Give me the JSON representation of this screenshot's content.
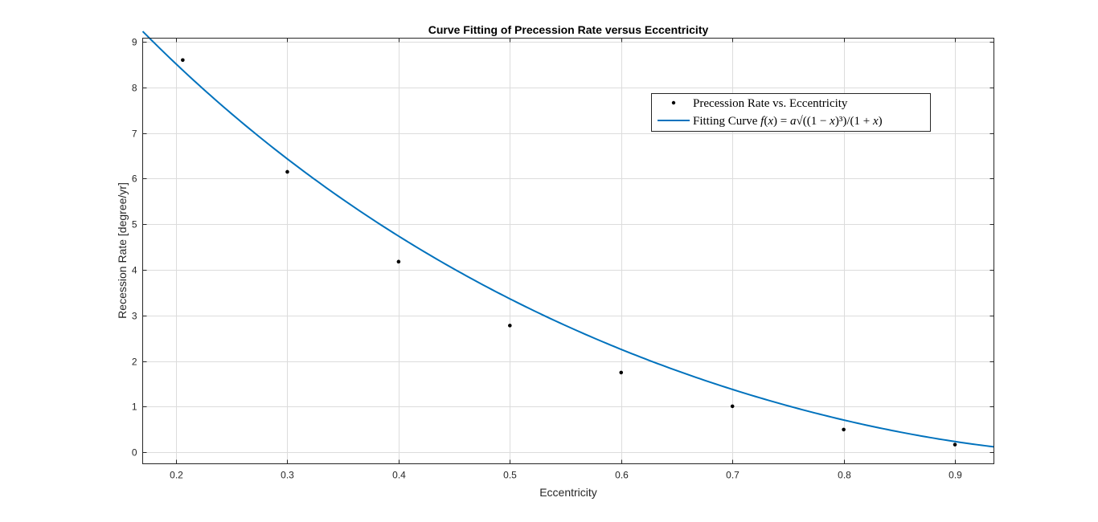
{
  "chart_data": {
    "type": "scatter",
    "title": "Curve Fitting of Precession Rate versus Eccentricity",
    "xlabel": "Eccentricity",
    "ylabel": "Recession Rate [degree/yr]",
    "xlim": [
      0.17,
      0.935
    ],
    "ylim": [
      -0.25,
      9.08
    ],
    "xticks": [
      0.2,
      0.3,
      0.4,
      0.5,
      0.6,
      0.7,
      0.8,
      0.9
    ],
    "xtick_labels": [
      "0.2",
      "0.3",
      "0.4",
      "0.5",
      "0.6",
      "0.7",
      "0.8",
      "0.9"
    ],
    "yticks": [
      0,
      1,
      2,
      3,
      4,
      5,
      6,
      7,
      8,
      9
    ],
    "ytick_labels": [
      "0",
      "1",
      "2",
      "3",
      "4",
      "5",
      "6",
      "7",
      "8",
      "9"
    ],
    "grid": true,
    "legend_position": "top-right",
    "series": [
      {
        "name": "Precession Rate vs. Eccentricity",
        "kind": "scatter",
        "color": "#000000",
        "x": [
          0.206,
          0.3,
          0.4,
          0.5,
          0.6,
          0.7,
          0.8,
          0.9
        ],
        "y": [
          8.6,
          6.15,
          4.18,
          2.78,
          1.75,
          1.01,
          0.5,
          0.17
        ]
      },
      {
        "name": "Fitting Curve",
        "kind": "line",
        "color": "#0072BD",
        "formula": "f(x) = a*sqrt((1-x)^3)/(1+x)",
        "a": 14.28,
        "x_range": [
          0.17,
          0.935
        ]
      }
    ]
  }
}
